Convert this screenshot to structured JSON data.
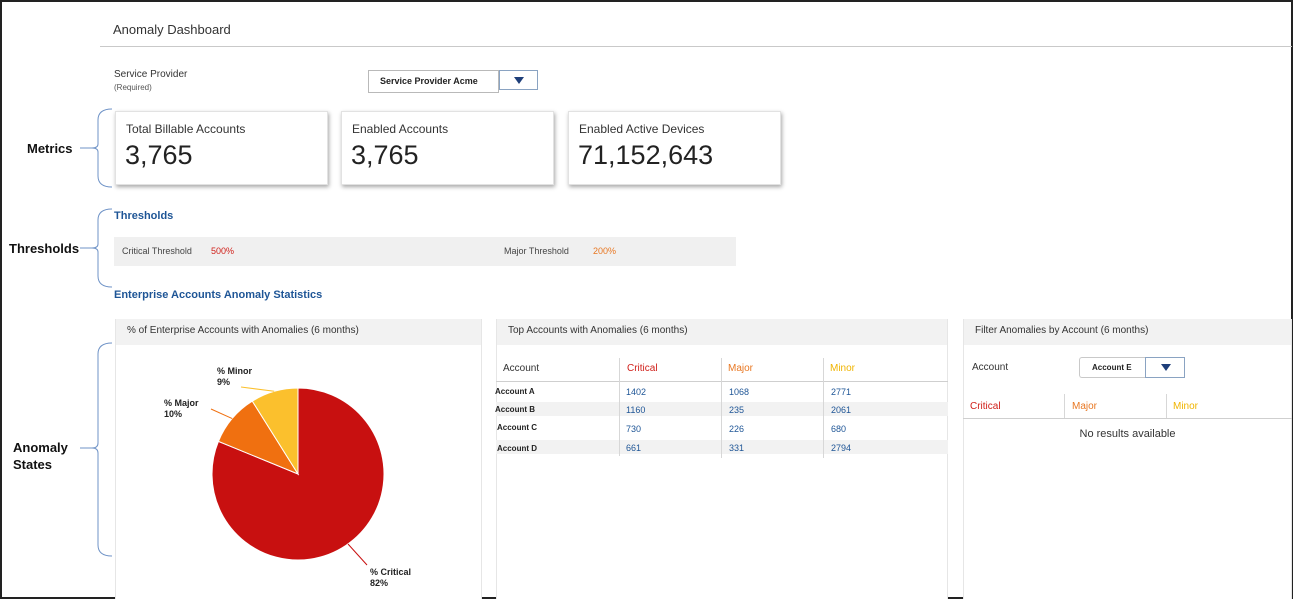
{
  "header": {
    "title": "Anomaly Dashboard"
  },
  "service_provider": {
    "label": "Service Provider",
    "required": "(Required)",
    "selected": "Service Provider Acme"
  },
  "side_labels": {
    "metrics": "Metrics",
    "thresholds": "Thresholds",
    "anomaly_states_line1": "Anomaly",
    "anomaly_states_line2": "States"
  },
  "metrics": [
    {
      "label": "Total Billable Accounts",
      "value": "3,765"
    },
    {
      "label": "Enabled Accounts",
      "value": "3,765"
    },
    {
      "label": "Enabled Active Devices",
      "value": "71,152,643"
    }
  ],
  "thresholds": {
    "heading": "Thresholds",
    "critical_label": "Critical Threshold",
    "critical_value": "500%",
    "major_label": "Major Threshold",
    "major_value": "200%"
  },
  "stats_heading": "Enterprise Accounts Anomaly Statistics",
  "pie_panel": {
    "title": "% of Enterprise Accounts with Anomalies (6 months)",
    "labels": {
      "minor_name": "% Minor",
      "minor_pct": "9%",
      "major_name": "% Major",
      "major_pct": "10%",
      "critical_name": "% Critical",
      "critical_pct": "82%"
    }
  },
  "chart_data": {
    "type": "pie",
    "title": "% of Enterprise Accounts with Anomalies (6 months)",
    "categories": [
      "% Critical",
      "% Major",
      "% Minor"
    ],
    "values": [
      82,
      10,
      9
    ],
    "colors": [
      "#c81010",
      "#f07010",
      "#fbc02d"
    ]
  },
  "top_accounts": {
    "title": "Top Accounts with Anomalies (6 months)",
    "headers": {
      "account": "Account",
      "critical": "Critical",
      "major": "Major",
      "minor": "Minor"
    },
    "rows": [
      {
        "account": "Account A",
        "critical": "1402",
        "major": "1068",
        "minor": "2771"
      },
      {
        "account": "Account B",
        "critical": "1160",
        "major": "235",
        "minor": "2061"
      },
      {
        "account": "Account C",
        "critical": "730",
        "major": "226",
        "minor": "680"
      },
      {
        "account": "Account D",
        "critical": "661",
        "major": "331",
        "minor": "2794"
      }
    ]
  },
  "filter_panel": {
    "title": "Filter Anomalies by Account (6 months)",
    "account_label": "Account",
    "account_selected": "Account E",
    "headers": {
      "critical": "Critical",
      "major": "Major",
      "minor": "Minor"
    },
    "empty": "No results available"
  },
  "colors": {
    "critical": "#d0201a",
    "major": "#e87722",
    "minor": "#f0b400",
    "link": "#1e5596"
  }
}
